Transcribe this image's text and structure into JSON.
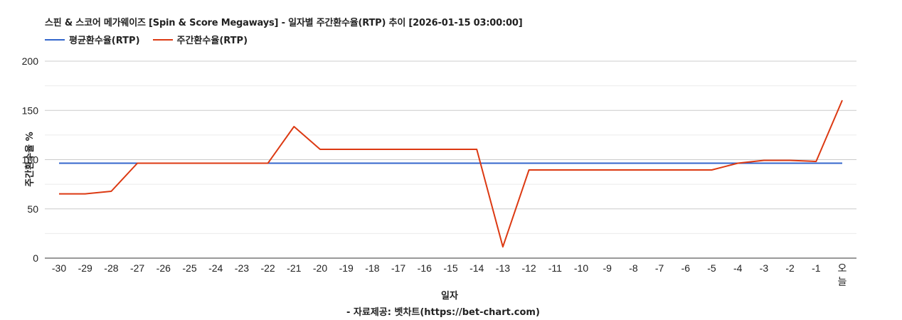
{
  "chart_data": {
    "type": "line",
    "title": "스핀  & 스코어 메가웨이즈 [Spin & Score Megaways] - 일자별 주간환수율(RTP) 추이 [2026-01-15 03:00:00]",
    "xlabel": "일자",
    "ylabel": "주간환수율 %",
    "ylim": [
      0,
      200
    ],
    "yticks": [
      0,
      50,
      100,
      150,
      200
    ],
    "grid": true,
    "legend_position": "top-left",
    "categories": [
      "-30",
      "-29",
      "-28",
      "-27",
      "-26",
      "-25",
      "-24",
      "-23",
      "-22",
      "-21",
      "-20",
      "-19",
      "-18",
      "-17",
      "-16",
      "-15",
      "-14",
      "-13",
      "-12",
      "-11",
      "-10",
      "-9",
      "-8",
      "-7",
      "-6",
      "-5",
      "-4",
      "-3",
      "-2",
      "-1",
      "오늘"
    ],
    "series": [
      {
        "name": "평균환수율(RTP)",
        "color": "#3366cc",
        "values": [
          96.4,
          96.4,
          96.4,
          96.4,
          96.4,
          96.4,
          96.4,
          96.4,
          96.4,
          96.4,
          96.4,
          96.4,
          96.4,
          96.4,
          96.4,
          96.4,
          96.4,
          96.4,
          96.4,
          96.4,
          96.4,
          96.4,
          96.4,
          96.4,
          96.4,
          96.4,
          96.4,
          96.4,
          96.4,
          96.4,
          96.4
        ]
      },
      {
        "name": "주간환수율(RTP)",
        "color": "#dc3912",
        "values": [
          65.3,
          65.3,
          67.9,
          96.4,
          96.4,
          96.4,
          96.4,
          96.4,
          96.4,
          133.6,
          110.5,
          110.5,
          110.5,
          110.5,
          110.5,
          110.5,
          110.5,
          11.5,
          89.5,
          89.5,
          89.5,
          89.5,
          89.5,
          89.5,
          89.5,
          89.5,
          96.4,
          99.3,
          99.3,
          98.2,
          160.3
        ]
      }
    ],
    "source": "- 자료제공: 벳차트(https://bet-chart.com)"
  },
  "header": {
    "title": "스핀  & 스코어 메가웨이즈 [Spin & Score Megaways] - 일자별 주간환수율(RTP) 추이 [2026-01-15 03:00:00]"
  },
  "legend": {
    "items": [
      {
        "label": "평균환수율(RTP)",
        "color": "#3366cc"
      },
      {
        "label": "주간환수율(RTP)",
        "color": "#dc3912"
      }
    ]
  },
  "axes": {
    "xlabel": "일자",
    "ylabel": "주간환수율 %",
    "yticks": [
      "0",
      "50",
      "100",
      "150",
      "200"
    ]
  },
  "footer": {
    "source": "- 자료제공: 벳차트(https://bet-chart.com)"
  }
}
